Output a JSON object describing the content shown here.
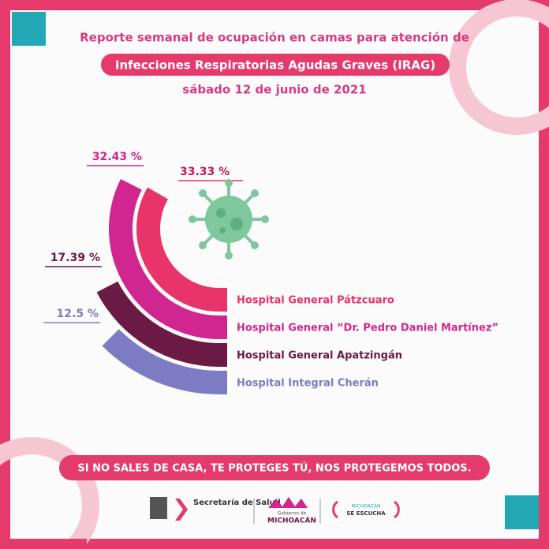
{
  "chart_data": {
    "type": "radial-bar",
    "title": "Reporte semanal de ocupación en camas para atención de",
    "subtitle": "Infecciones Respiratorias Agudas Graves (IRAG)",
    "date": "sábado 12 de junio de 2021",
    "categories": [
      "Hospital General Pátzcuaro",
      "Hospital General “Dr. Pedro Daniel Martínez”",
      "Hospital General Apatzingán",
      "Hospital Integral Cherán"
    ],
    "values": [
      33.33,
      32.43,
      17.39,
      12.5
    ],
    "value_labels": [
      "33.33 %",
      "32.43 %",
      "17.39 %",
      "12.5 %"
    ],
    "colors": [
      "#e8336b",
      "#d1268f",
      "#6b1a44",
      "#7d7bc2"
    ],
    "full_circle": 100
  },
  "footer": {
    "slogan": "SI NO SALES DE CASA, TE PROTEGES TÚ, NOS PROTEGEMOS TODOS.",
    "logo_salud": "Secretaría de Salud",
    "logo_gobierno_small": "Gobierno de",
    "logo_gobierno": "MICHOACÁN",
    "logo_escucha_1": "MICHOACÁN",
    "logo_escucha_2": "SE ESCUCHA"
  }
}
